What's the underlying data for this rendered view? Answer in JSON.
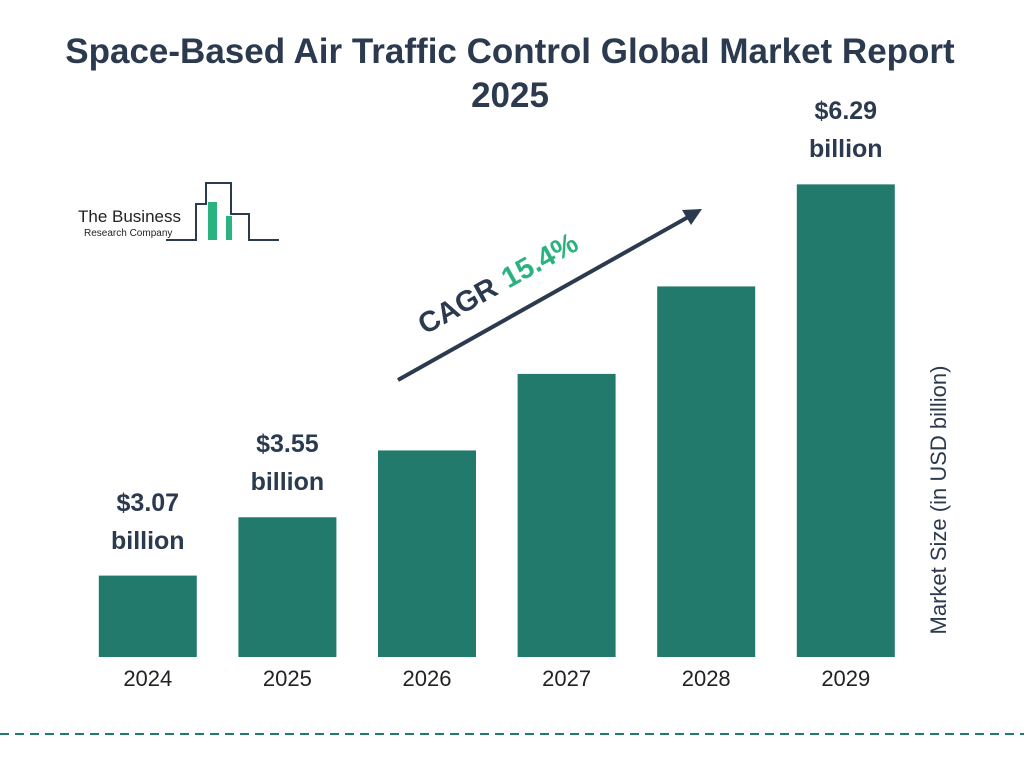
{
  "chart_data": {
    "type": "bar",
    "title": "Space-Based Air Traffic Control Global Market Report 2025",
    "categories": [
      "2024",
      "2025",
      "2026",
      "2027",
      "2028",
      "2029"
    ],
    "values": [
      3.07,
      3.55,
      4.1,
      4.73,
      5.45,
      6.29
    ],
    "value_labels": [
      "$3.07 billion",
      "$3.55 billion",
      null,
      null,
      null,
      "$6.29 billion"
    ],
    "color": "#217a6b",
    "ylim": [
      2.4,
      6.4
    ],
    "y_label": "Market Size (in USD billion)",
    "annotation": {
      "label": "CAGR",
      "value": "15.4%"
    },
    "logo": {
      "line1": "The Business",
      "line2": "Research Company"
    }
  }
}
